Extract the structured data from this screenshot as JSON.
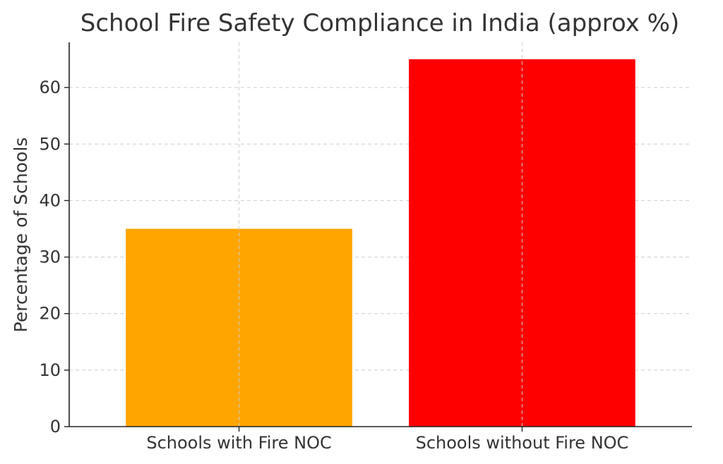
{
  "chart_data": {
    "type": "bar",
    "title": "School Fire Safety Compliance in India (approx %)",
    "xlabel": "",
    "ylabel": "Percentage of Schools",
    "categories": [
      "Schools with Fire NOC",
      "Schools without Fire NOC"
    ],
    "values": [
      35,
      65
    ],
    "colors": [
      "#FFA500",
      "#FF0000"
    ],
    "ylim": [
      0,
      68
    ],
    "yticks": [
      0,
      10,
      20,
      30,
      40,
      50,
      60
    ],
    "grid": true,
    "legend": "none"
  }
}
